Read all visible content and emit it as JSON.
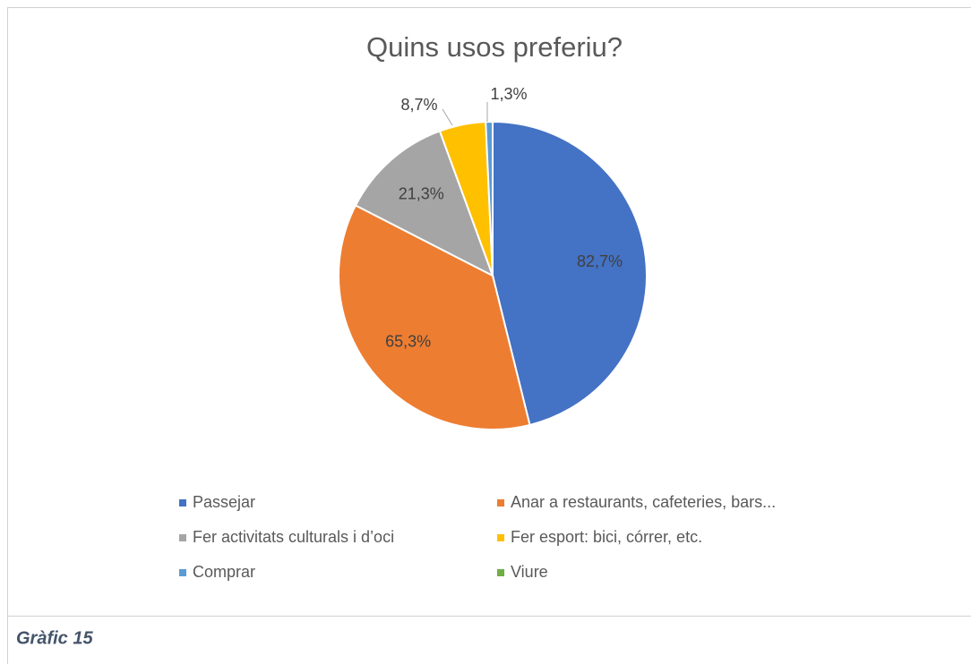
{
  "chart_data": {
    "type": "pie",
    "title": "Quins usos preferiu?",
    "categories": [
      "Passejar",
      "Anar a restaurants, cafeteries, bars...",
      "Fer activitats culturals i d’oci",
      "Fer esport: bici, córrer, etc.",
      "Comprar",
      "Viure"
    ],
    "values": [
      82.7,
      65.3,
      21.3,
      8.7,
      1.3,
      0
    ],
    "value_labels": [
      "82,7%",
      "65,3%",
      "21,3%",
      "8,7%",
      "1,3%",
      null
    ],
    "colors": [
      "#4472c4",
      "#ed7d31",
      "#a5a5a5",
      "#ffc000",
      "#5b9bd5",
      "#70ad47"
    ],
    "legend": "bottom"
  },
  "caption": "Gràfic 15"
}
